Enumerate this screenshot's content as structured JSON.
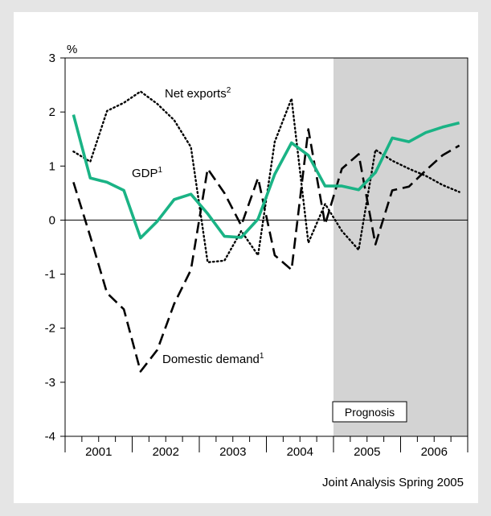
{
  "chart_data": {
    "type": "line",
    "unit_label": "%",
    "ylim": [
      -4,
      3
    ],
    "yticks": [
      3,
      2,
      1,
      0,
      -1,
      -2,
      -3,
      -4
    ],
    "x_years": [
      "2001",
      "2002",
      "2003",
      "2004",
      "2005",
      "2006"
    ],
    "x_quarters": [
      "2001 Q1",
      "2001 Q2",
      "2001 Q3",
      "2001 Q4",
      "2002 Q1",
      "2002 Q2",
      "2002 Q3",
      "2002 Q4",
      "2003 Q1",
      "2003 Q2",
      "2003 Q3",
      "2003 Q4",
      "2004 Q1",
      "2004 Q2",
      "2004 Q3",
      "2004 Q4",
      "2005 Q1",
      "2005 Q2",
      "2005 Q3",
      "2005 Q4",
      "2006 Q1",
      "2006 Q2",
      "2006 Q3",
      "2006 Q4"
    ],
    "forecast_start": "2005 Q1",
    "forecast_label": "Prognosis",
    "series": [
      {
        "name": "GDP",
        "footnote": "1",
        "style": "solid",
        "color": "#1ab385",
        "values": [
          1.95,
          0.78,
          0.7,
          0.55,
          -0.33,
          -0.02,
          0.38,
          0.48,
          0.12,
          -0.3,
          -0.32,
          0.02,
          0.85,
          1.43,
          1.2,
          0.63,
          0.63,
          0.56,
          0.88,
          1.52,
          1.45,
          1.62,
          1.72,
          1.8
        ]
      },
      {
        "name": "Net exports",
        "footnote": "2",
        "style": "dotted",
        "color": "#000000",
        "values": [
          1.27,
          1.08,
          2.02,
          2.17,
          2.38,
          2.15,
          1.85,
          1.35,
          -0.78,
          -0.75,
          -0.2,
          -0.65,
          1.45,
          2.25,
          -0.42,
          0.3,
          -0.2,
          -0.55,
          1.3,
          1.1,
          0.95,
          0.82,
          0.65,
          0.52
        ]
      },
      {
        "name": "Domestic demand",
        "footnote": "1",
        "style": "dashed",
        "color": "#000000",
        "values": [
          0.7,
          -0.3,
          -1.35,
          -1.65,
          -2.8,
          -2.4,
          -1.55,
          -0.92,
          0.95,
          0.5,
          -0.1,
          0.78,
          -0.65,
          -0.92,
          1.68,
          -0.08,
          0.95,
          1.22,
          -0.45,
          0.55,
          0.62,
          0.92,
          1.2,
          1.38
        ]
      }
    ],
    "annotations": [
      "Net exports",
      "GDP",
      "Domestic demand"
    ]
  },
  "source": "Joint Analysis Spring 2005",
  "colors": {
    "outer_background": "#e5e5e5",
    "forecast_shade": "#d3d3d3",
    "gdp_line": "#1ab385"
  }
}
